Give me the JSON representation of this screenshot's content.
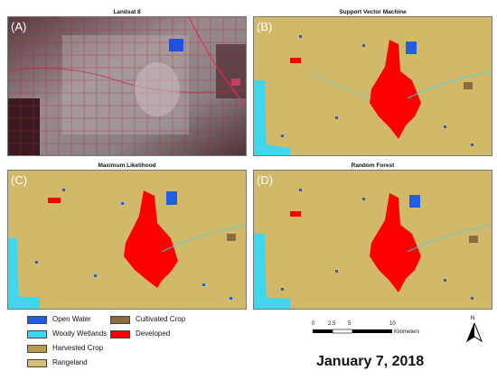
{
  "panels": [
    {
      "id": "A",
      "title": "Landsat 8",
      "letter": "(A)"
    },
    {
      "id": "B",
      "title": "Support Vector Machine",
      "letter": "(B)"
    },
    {
      "id": "C",
      "title": "Maximum Likelihood",
      "letter": "(C)"
    },
    {
      "id": "D",
      "title": "Random Forest",
      "letter": "(D)"
    }
  ],
  "legend": [
    {
      "label": "Open Water",
      "color": "#1f5fe0"
    },
    {
      "label": "Cultivated Crop",
      "color": "#8b6b3f"
    },
    {
      "label": "Woody Wetlands",
      "color": "#3fd6ee"
    },
    {
      "label": "Developed",
      "color": "#ff0000"
    },
    {
      "label": "Harvested Crop",
      "color": "#c8a25a"
    },
    {
      "label": "Rangeland",
      "color": "#d8c070"
    }
  ],
  "scale": {
    "ticks": [
      "0",
      "2.5",
      "5",
      "10"
    ],
    "unit": "Kilometers"
  },
  "north_label": "N",
  "date": "January 7, 2018",
  "colors": {
    "rangeland": "#d2b96a",
    "developed": "#ff0000",
    "water": "#1f5fe0",
    "wetlands": "#3fd6ee",
    "cultivated": "#8b6b3f",
    "harvested": "#b89a55"
  }
}
